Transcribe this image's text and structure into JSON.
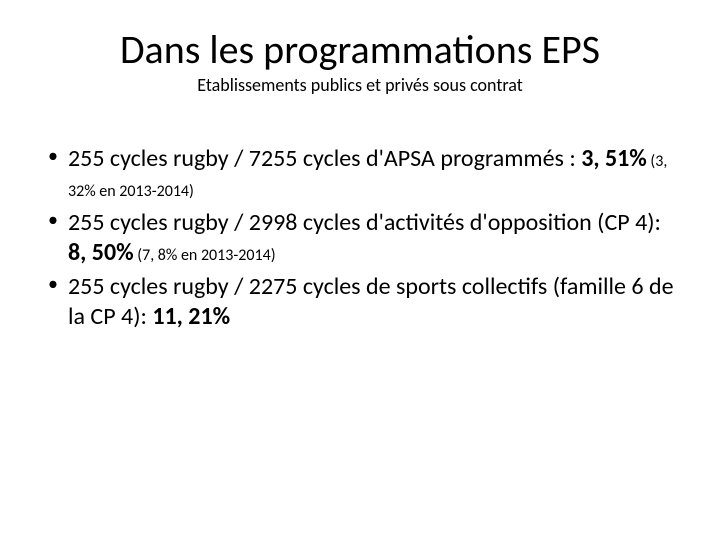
{
  "title": "Dans les programmations EPS",
  "subtitle": "Etablissements publics et privés sous contrat",
  "bullets": [
    {
      "text_a": "255 cycles rugby / 7255 cycles d'APSA programmés : ",
      "pct": "3, 51%",
      "note": " (3, 32% en 2013-2014)"
    },
    {
      "text_a": "255 cycles rugby / 2998 cycles d'activités d'opposition (CP 4): ",
      "pct": "8, 50%",
      "note": " (7, 8% en 2013-2014)"
    },
    {
      "text_a": "255 cycles rugby / 2275 cycles de sports collectifs (famille 6 de la CP 4): ",
      "pct": "11, 21%",
      "note": ""
    }
  ],
  "typography": {
    "title_fontsize": 40,
    "subtitle_fontsize": 18,
    "body_fontsize": 24,
    "note_fontsize": 16,
    "font_family": "Calibri",
    "text_color": "#000000",
    "background_color": "#ffffff"
  }
}
